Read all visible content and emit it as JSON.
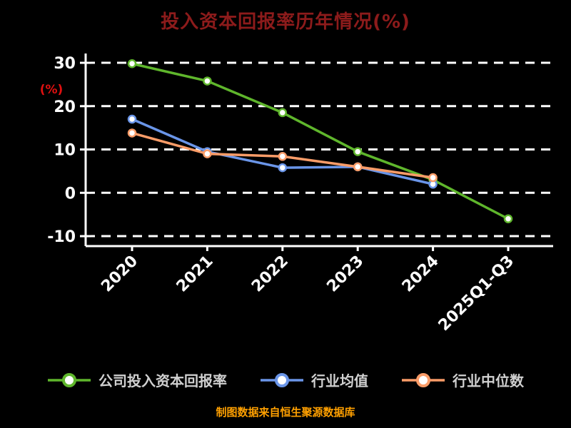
{
  "title": "投入资本回报率历年情况(%)",
  "y_axis_label": "(%)",
  "footer": "制图数据来自恒生聚源数据库",
  "colors": {
    "background": "#000000",
    "title": "#8c1b1b",
    "axis": "#ffffff",
    "tick_text": "#ffffff",
    "y_axis_label": "#e01010",
    "legend_text": "#d0d0d0",
    "footer_text": "#ffa000"
  },
  "chart_data": {
    "type": "line",
    "title": "投入资本回报率历年情况(%)",
    "ylabel": "(%)",
    "categories": [
      "2020",
      "2021",
      "2022",
      "2023",
      "2024",
      "2025Q1-Q3"
    ],
    "ylim": [
      -10,
      30
    ],
    "yticks": [
      30,
      20,
      10,
      0,
      -10
    ],
    "grid": "horizontal-dashed",
    "legend_position": "bottom",
    "series": [
      {
        "name": "公司投入资本回报率",
        "color": "#5fb62c",
        "values": [
          29.8,
          25.8,
          18.5,
          9.5,
          3.0,
          -6.0
        ]
      },
      {
        "name": "行业均值",
        "color": "#6a95e8",
        "values": [
          17.0,
          9.5,
          5.8,
          6.0,
          2.0,
          null
        ]
      },
      {
        "name": "行业中位数",
        "color": "#fa9c68",
        "values": [
          13.8,
          9.0,
          8.4,
          6.0,
          3.5,
          null
        ]
      }
    ]
  }
}
